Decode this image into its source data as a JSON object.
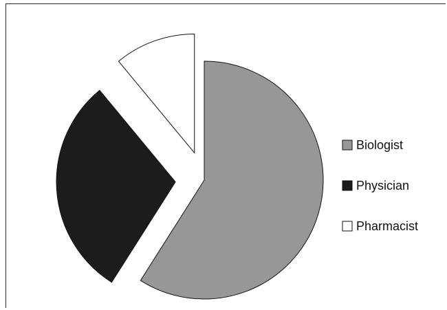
{
  "chart_data": {
    "type": "pie",
    "title": "",
    "exploded": true,
    "legend_position": "right",
    "slices": [
      {
        "label": "Biologist",
        "value": 59,
        "color": "#969799"
      },
      {
        "label": "Physician",
        "value": 30,
        "color": "#1c1c1c"
      },
      {
        "label": "Pharmacist",
        "value": 11,
        "color": "#ffffff"
      }
    ]
  }
}
